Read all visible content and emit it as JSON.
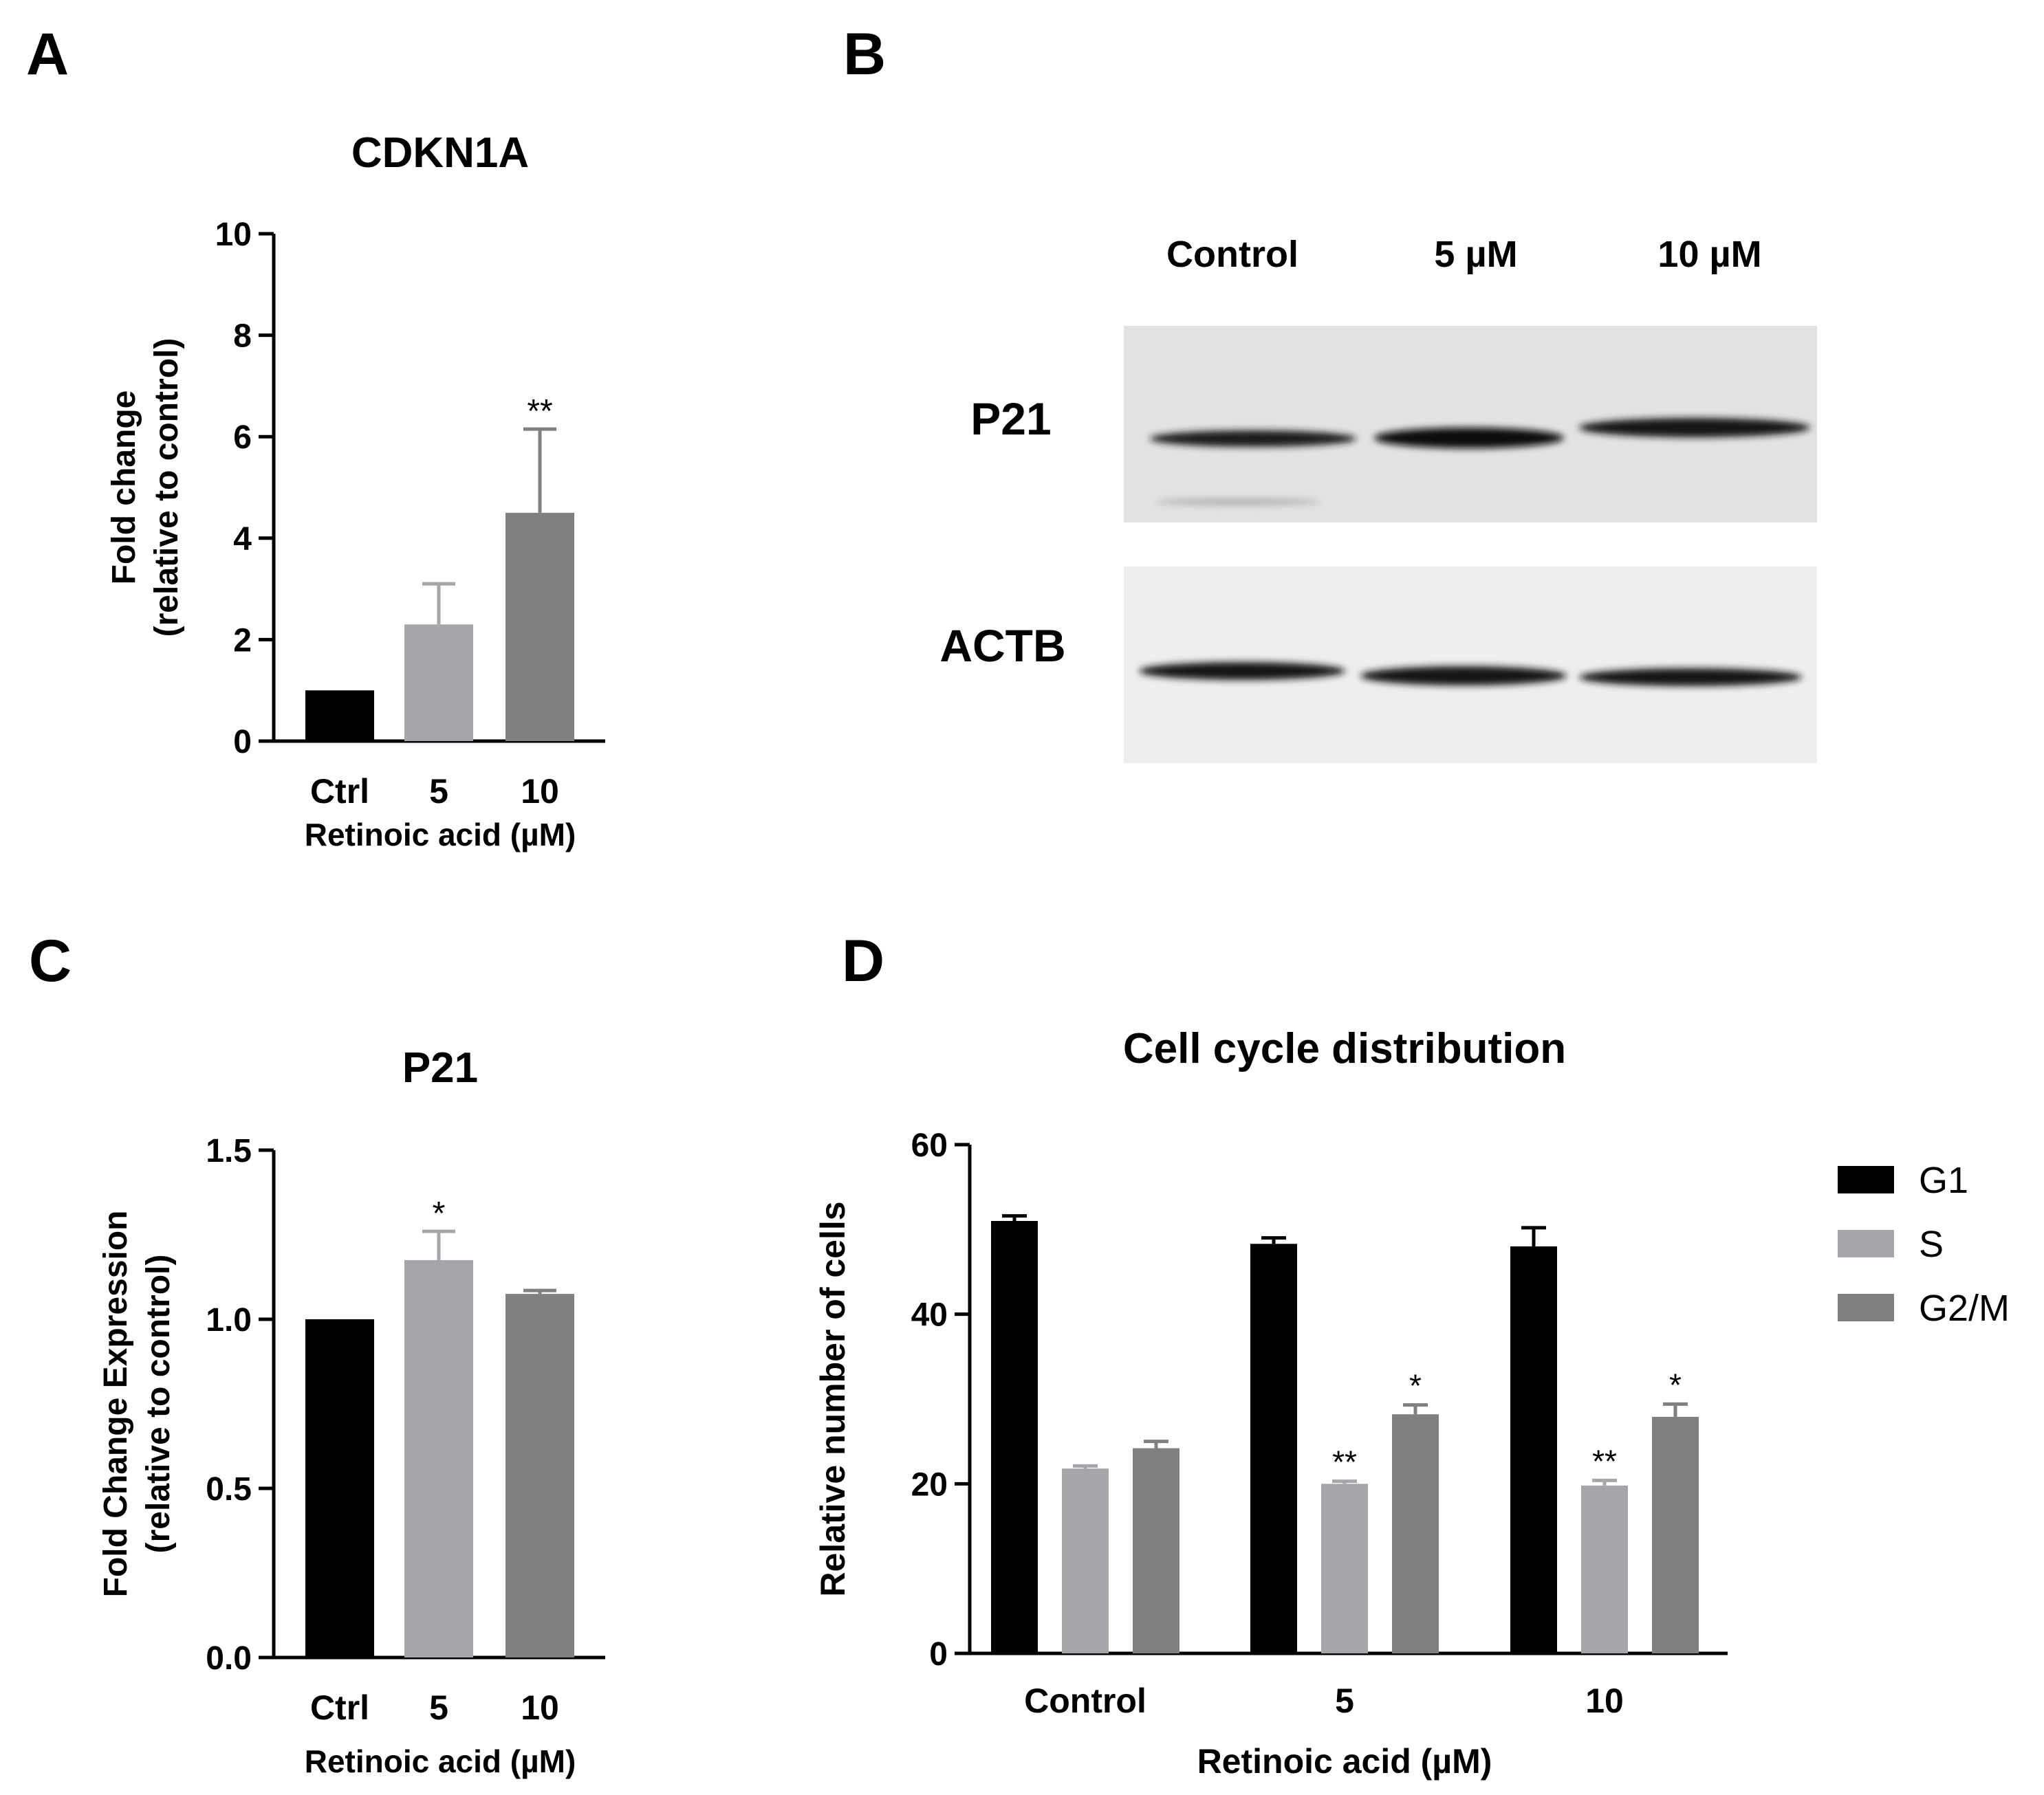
{
  "panels": {
    "A": {
      "letter": "A"
    },
    "B": {
      "letter": "B"
    },
    "C": {
      "letter": "C"
    },
    "D": {
      "letter": "D"
    }
  },
  "western_blot": {
    "lanes": [
      "Control",
      "5 µM",
      "10 µM"
    ],
    "proteins": [
      "P21",
      "ACTB"
    ],
    "background": "#e4e4e4",
    "band_color": "#141414"
  },
  "chart_data": [
    {
      "panel": "A",
      "type": "bar",
      "title": "CDKN1A",
      "xlabel": "Retinoic acid (µM)",
      "ylabel_lines": [
        "Fold change",
        "(relative to control)"
      ],
      "categories": [
        "Ctrl",
        "5",
        "10"
      ],
      "values": [
        1.0,
        2.3,
        4.5
      ],
      "errors": [
        0,
        0.8,
        1.65
      ],
      "significance": [
        "",
        "",
        "**"
      ],
      "colors": [
        "#000000",
        "#a6a6aa",
        "#808080"
      ],
      "ylim": [
        0,
        10
      ],
      "yticks": [
        0,
        2,
        4,
        6,
        8,
        10
      ],
      "yticklabels": [
        "0",
        "2",
        "4",
        "6",
        "8",
        "10"
      ]
    },
    {
      "panel": "C",
      "type": "bar",
      "title": "P21",
      "xlabel": "Retinoic acid (µM)",
      "ylabel_lines": [
        "Fold Change Expression",
        "(relative to control)"
      ],
      "categories": [
        "Ctrl",
        "5",
        "10"
      ],
      "values": [
        1.0,
        1.175,
        1.075
      ],
      "errors": [
        0,
        0.085,
        0.01
      ],
      "significance": [
        "",
        "*",
        ""
      ],
      "colors": [
        "#000000",
        "#a6a6aa",
        "#808080"
      ],
      "ylim": [
        0,
        1.5
      ],
      "yticks": [
        0,
        0.5,
        1.0,
        1.5
      ],
      "yticklabels": [
        "0.0",
        "0.5",
        "1.0",
        "1.5"
      ]
    },
    {
      "panel": "D",
      "type": "bar",
      "title": "Cell cycle distribution",
      "xlabel": "Retinoic acid (µM)",
      "ylabel": "Relative number of cells",
      "categories": [
        "Control",
        "5",
        "10"
      ],
      "series": [
        {
          "name": "G1",
          "color": "#000000",
          "values": [
            51.0,
            48.3,
            48.0
          ],
          "errors": [
            0.6,
            0.7,
            2.2
          ],
          "significance": [
            "",
            "",
            ""
          ]
        },
        {
          "name": "S",
          "color": "#a6a6aa",
          "values": [
            21.8,
            20.0,
            19.8
          ],
          "errors": [
            0.3,
            0.3,
            0.6
          ],
          "significance": [
            "",
            "**",
            "**"
          ]
        },
        {
          "name": "G2/M",
          "color": "#808080",
          "values": [
            24.2,
            28.2,
            27.9
          ],
          "errors": [
            0.8,
            1.1,
            1.5
          ],
          "significance": [
            "",
            "*",
            "*"
          ]
        }
      ],
      "ylim": [
        0,
        60
      ],
      "yticks": [
        0,
        20,
        40,
        60
      ],
      "yticklabels": [
        "0",
        "20",
        "40",
        "60"
      ],
      "legend_position": "right"
    }
  ]
}
